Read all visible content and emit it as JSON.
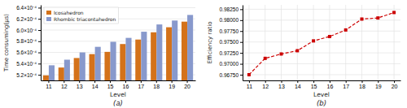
{
  "chart_data": [
    {
      "type": "bar",
      "categories": [
        "11",
        "12",
        "13",
        "14",
        "15",
        "16",
        "17",
        "18",
        "19",
        "20"
      ],
      "series": [
        {
          "name": "Icosahedron",
          "color": "#D4721A",
          "values": [
            0.000519,
            0.000533,
            0.00055,
            0.000557,
            0.000561,
            0.000575,
            0.000583,
            0.000596,
            0.000605,
            0.000615
          ]
        },
        {
          "name": "Rhombic triacontahedron",
          "color": "#8899CC",
          "values": [
            0.000537,
            0.000547,
            0.00056,
            0.00057,
            0.000579,
            0.000586,
            0.000597,
            0.00061,
            0.000617,
            0.000627
          ]
        }
      ],
      "x_label": "Level",
      "y_label": "Time consuming(μs)",
      "annotation": "(a)",
      "ylim": [
        0.00051,
        0.000645
      ],
      "yticks": [
        {
          "value": 0.00052,
          "label": "5.2×10⁻⁴"
        },
        {
          "value": 0.00054,
          "label": "5.4×10⁻⁴"
        },
        {
          "value": 0.00056,
          "label": "5.6×10⁻⁴"
        },
        {
          "value": 0.00058,
          "label": "5.8×10⁻⁴"
        },
        {
          "value": 0.0006,
          "label": "6.0×10⁻⁴"
        },
        {
          "value": 0.00062,
          "label": "6.2×10⁻⁴"
        },
        {
          "value": 0.00064,
          "label": "6.4×10⁻⁴"
        }
      ],
      "grid": "y",
      "legend": "upper left"
    },
    {
      "type": "line",
      "categories": [
        "11",
        "12",
        "13",
        "14",
        "15",
        "16",
        "17",
        "18",
        "19",
        "20"
      ],
      "values": [
        0.9675,
        0.97125,
        0.97225,
        0.973,
        0.97525,
        0.97625,
        0.97775,
        0.98025,
        0.9805,
        0.98175
      ],
      "color": "#CC0000",
      "marker": "square",
      "line_style": "dashed",
      "x_label": "Level",
      "y_label": "Efficiency ratio",
      "annotation": "(b)",
      "ylim": [
        0.9662,
        0.9835
      ],
      "yticks": [
        {
          "value": 0.9675,
          "label": "0.96750"
        },
        {
          "value": 0.97,
          "label": "0.97000"
        },
        {
          "value": 0.9725,
          "label": "0.97250"
        },
        {
          "value": 0.975,
          "label": "0.97500"
        },
        {
          "value": 0.9775,
          "label": "0.97750"
        },
        {
          "value": 0.98,
          "label": "0.98000"
        },
        {
          "value": 0.9825,
          "label": "0.98250"
        }
      ],
      "grid": true
    }
  ]
}
